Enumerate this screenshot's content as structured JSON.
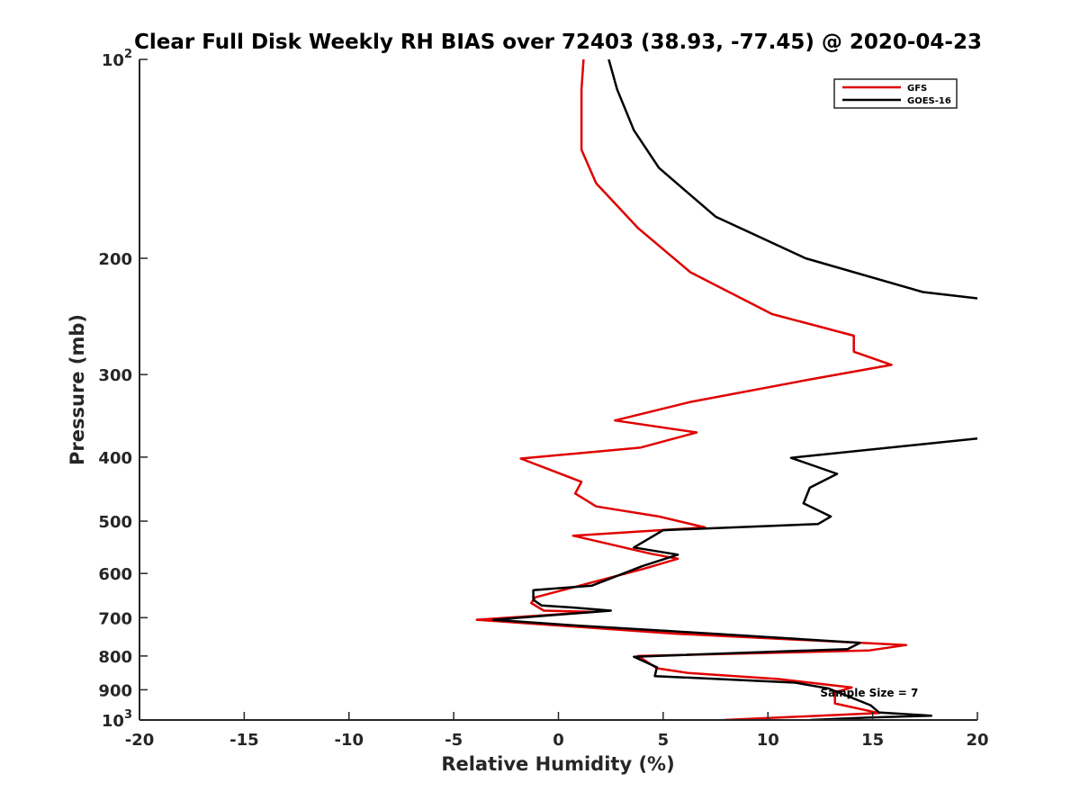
{
  "chart_data": {
    "type": "line",
    "title": "Clear Full Disk Weekly RH BIAS over 72403 (38.93, -77.45) @ 2020-04-23",
    "xlabel": "Relative Humidity (%)",
    "ylabel": "Pressure (mb)",
    "xlim": [
      -20,
      20
    ],
    "ylim": [
      100,
      1000
    ],
    "y_scale": "log",
    "y_reversed": true,
    "grid": false,
    "legend_position": "top-right",
    "x_ticks": [
      {
        "value": -20,
        "label": "-20"
      },
      {
        "value": -15,
        "label": "-15"
      },
      {
        "value": -10,
        "label": "-10"
      },
      {
        "value": -5,
        "label": "-5"
      },
      {
        "value": 0,
        "label": "0"
      },
      {
        "value": 5,
        "label": "5"
      },
      {
        "value": 10,
        "label": "10"
      },
      {
        "value": 15,
        "label": "15"
      },
      {
        "value": 20,
        "label": "20"
      }
    ],
    "y_ticks": [
      {
        "value": 100,
        "base": "10",
        "exp": "2"
      },
      {
        "value": 200,
        "base": "200",
        "exp": ""
      },
      {
        "value": 300,
        "base": "300",
        "exp": ""
      },
      {
        "value": 400,
        "base": "400",
        "exp": ""
      },
      {
        "value": 500,
        "base": "500",
        "exp": ""
      },
      {
        "value": 600,
        "base": "600",
        "exp": ""
      },
      {
        "value": 700,
        "base": "700",
        "exp": ""
      },
      {
        "value": 800,
        "base": "800",
        "exp": ""
      },
      {
        "value": 900,
        "base": "900",
        "exp": ""
      },
      {
        "value": 1000,
        "base": "10",
        "exp": "3"
      }
    ],
    "series": [
      {
        "name": "GFS",
        "color": "#e00000",
        "x": [
          1.2,
          1.1,
          1.1,
          1.1,
          1.8,
          3.8,
          6.3,
          10.2,
          14.1,
          14.1,
          15.9,
          11.8,
          6.3,
          2.7,
          6.6,
          3.9,
          -1.8,
          1.1,
          0.8,
          1.8,
          4.8,
          7.0,
          0.7,
          4.4,
          5.7,
          4.1,
          -1.1,
          -1.3,
          -0.7,
          1.7,
          -3.9,
          5.5,
          16.6,
          14.8,
          3.8,
          4.7,
          6.2,
          10.5,
          14.0,
          13.2,
          13.2,
          15.3,
          7.9
        ],
        "y": [
          100,
          111,
          128,
          137,
          154,
          180,
          210,
          243,
          262,
          277,
          290,
          306,
          330,
          352,
          367,
          387,
          402,
          436,
          454,
          475,
          492,
          511,
          526,
          560,
          570,
          590,
          652,
          665,
          683,
          686,
          705,
          740,
          770,
          785,
          800,
          835,
          849,
          867,
          893,
          908,
          944,
          976,
          1000
        ]
      },
      {
        "name": "GOES-16",
        "color": "#000000",
        "x": [
          2.4,
          2.8,
          3.6,
          4.8,
          7.5,
          11.8,
          17.4,
          20.0,
          null,
          20.0,
          11.1,
          13.3,
          12.0,
          11.7,
          13.0,
          12.4,
          5.0,
          3.6,
          5.7,
          4.0,
          1.6,
          -1.2,
          -1.2,
          -0.8,
          0.8,
          2.5,
          -3.1,
          1.0,
          5.2,
          14.4,
          13.8,
          3.6,
          4.7,
          4.6,
          11.3,
          12.9,
          13.8,
          14.9,
          15.3,
          17.8,
          14.7,
          12.0
        ],
        "y": [
          100,
          111,
          128,
          146,
          173,
          200,
          225,
          230,
          null,
          375,
          401,
          424,
          445,
          470,
          492,
          505,
          516,
          548,
          562,
          585,
          626,
          636,
          658,
          671,
          676,
          683,
          705,
          720,
          733,
          764,
          781,
          802,
          832,
          858,
          878,
          896,
          920,
          950,
          974,
          985,
          992,
          1000
        ]
      }
    ],
    "annotations": [
      {
        "text": "Sample Size = 7",
        "x": 12.5,
        "y": 910
      }
    ]
  }
}
